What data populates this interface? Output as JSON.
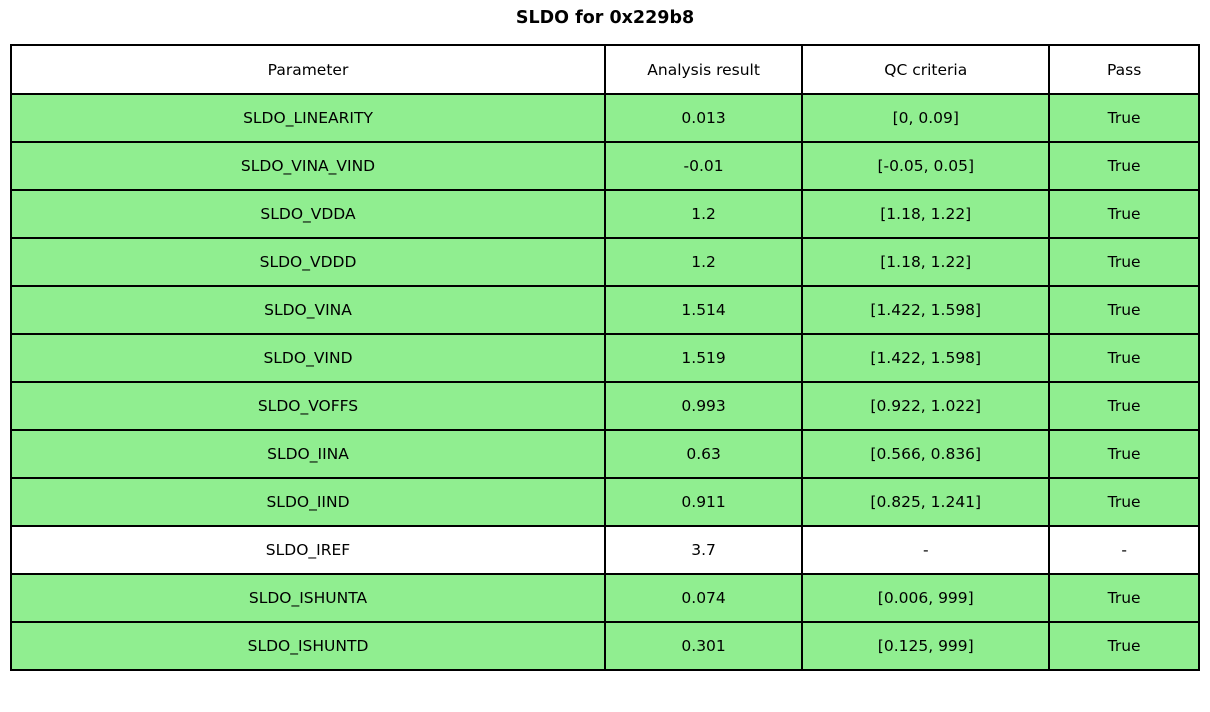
{
  "title": "SLDO for 0x229b8",
  "colors": {
    "pass_row": "#90ee90",
    "neutral_row": "#ffffff",
    "border": "#000000",
    "text": "#000000",
    "background": "#ffffff"
  },
  "chart_data": {
    "type": "table",
    "title": "SLDO for 0x229b8",
    "columns": [
      "Parameter",
      "Analysis result",
      "QC criteria",
      "Pass"
    ],
    "rows": [
      {
        "param": "SLDO_LINEARITY",
        "result": "0.013",
        "criteria": "[0, 0.09]",
        "pass": "True",
        "highlight": true
      },
      {
        "param": "SLDO_VINA_VIND",
        "result": "-0.01",
        "criteria": "[-0.05, 0.05]",
        "pass": "True",
        "highlight": true
      },
      {
        "param": "SLDO_VDDA",
        "result": "1.2",
        "criteria": "[1.18, 1.22]",
        "pass": "True",
        "highlight": true
      },
      {
        "param": "SLDO_VDDD",
        "result": "1.2",
        "criteria": "[1.18, 1.22]",
        "pass": "True",
        "highlight": true
      },
      {
        "param": "SLDO_VINA",
        "result": "1.514",
        "criteria": "[1.422, 1.598]",
        "pass": "True",
        "highlight": true
      },
      {
        "param": "SLDO_VIND",
        "result": "1.519",
        "criteria": "[1.422, 1.598]",
        "pass": "True",
        "highlight": true
      },
      {
        "param": "SLDO_VOFFS",
        "result": "0.993",
        "criteria": "[0.922, 1.022]",
        "pass": "True",
        "highlight": true
      },
      {
        "param": "SLDO_IINA",
        "result": "0.63",
        "criteria": "[0.566, 0.836]",
        "pass": "True",
        "highlight": true
      },
      {
        "param": "SLDO_IIND",
        "result": "0.911",
        "criteria": "[0.825, 1.241]",
        "pass": "True",
        "highlight": true
      },
      {
        "param": "SLDO_IREF",
        "result": "3.7",
        "criteria": "-",
        "pass": "-",
        "highlight": false
      },
      {
        "param": "SLDO_ISHUNTA",
        "result": "0.074",
        "criteria": "[0.006, 999]",
        "pass": "True",
        "highlight": true
      },
      {
        "param": "SLDO_ISHUNTD",
        "result": "0.301",
        "criteria": "[0.125, 999]",
        "pass": "True",
        "highlight": true
      }
    ],
    "legend_position": "none",
    "grid": true
  }
}
